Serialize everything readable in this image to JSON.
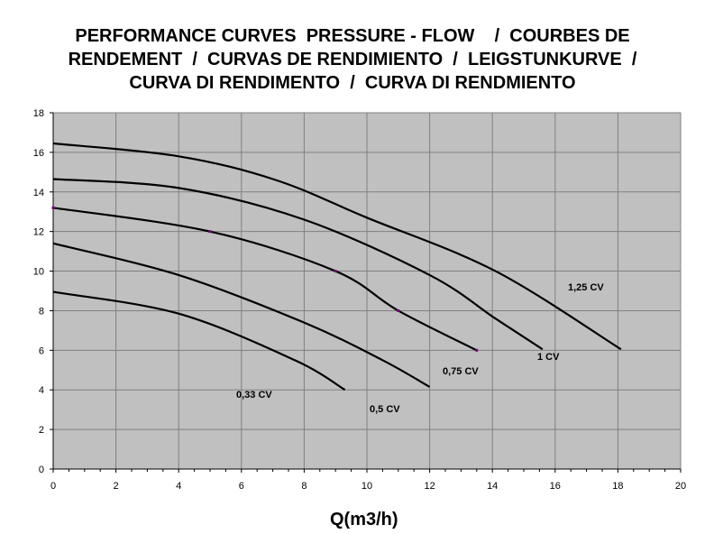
{
  "chart_data": {
    "type": "line",
    "title_lines": [
      "PERFORMANCE CURVES  PRESSURE - FLOW    /  COURBES DE",
      "RENDEMENT  /  CURVAS DE RENDIMIENTO  /  LEIGSTUNKURVE  /",
      "CURVA DI RENDIMENTO  /  CURVA DI RENDMIENTO"
    ],
    "xlabel": "Q(m3/h)",
    "ylabel": "",
    "xlim": [
      0,
      20
    ],
    "ylim": [
      0,
      18
    ],
    "xticks": [
      0,
      2,
      4,
      6,
      8,
      10,
      12,
      14,
      16,
      18,
      20
    ],
    "yticks": [
      0,
      2,
      4,
      6,
      8,
      10,
      12,
      14,
      16,
      18
    ],
    "grid": true,
    "background": "#c0c0c0",
    "grid_color": "#808080",
    "line_color": "#000000",
    "marker_color": "#800080",
    "series": [
      {
        "name": "1,25 CV",
        "x": [
          0,
          4,
          7.1,
          10,
          14.1,
          18.1
        ],
        "y": [
          16.45,
          15.8,
          14.6,
          12.7,
          10.0,
          6.05
        ]
      },
      {
        "name": "1 CV",
        "x": [
          0,
          4,
          8,
          12,
          14.1,
          15.6
        ],
        "y": [
          14.65,
          14.2,
          12.6,
          9.8,
          7.6,
          6.05
        ]
      },
      {
        "name": "0,75 CV",
        "x": [
          0,
          5,
          9,
          11,
          13.5
        ],
        "y": [
          13.2,
          12.0,
          10.0,
          8.0,
          6.0
        ],
        "markers": true
      },
      {
        "name": "0,5 CV",
        "x": [
          0,
          4,
          8,
          10.5,
          12
        ],
        "y": [
          11.4,
          9.8,
          7.4,
          5.5,
          4.15
        ]
      },
      {
        "name": "0,33 CV",
        "x": [
          0,
          4,
          7.7,
          9.3
        ],
        "y": [
          8.95,
          7.85,
          5.5,
          4.0
        ]
      }
    ]
  }
}
